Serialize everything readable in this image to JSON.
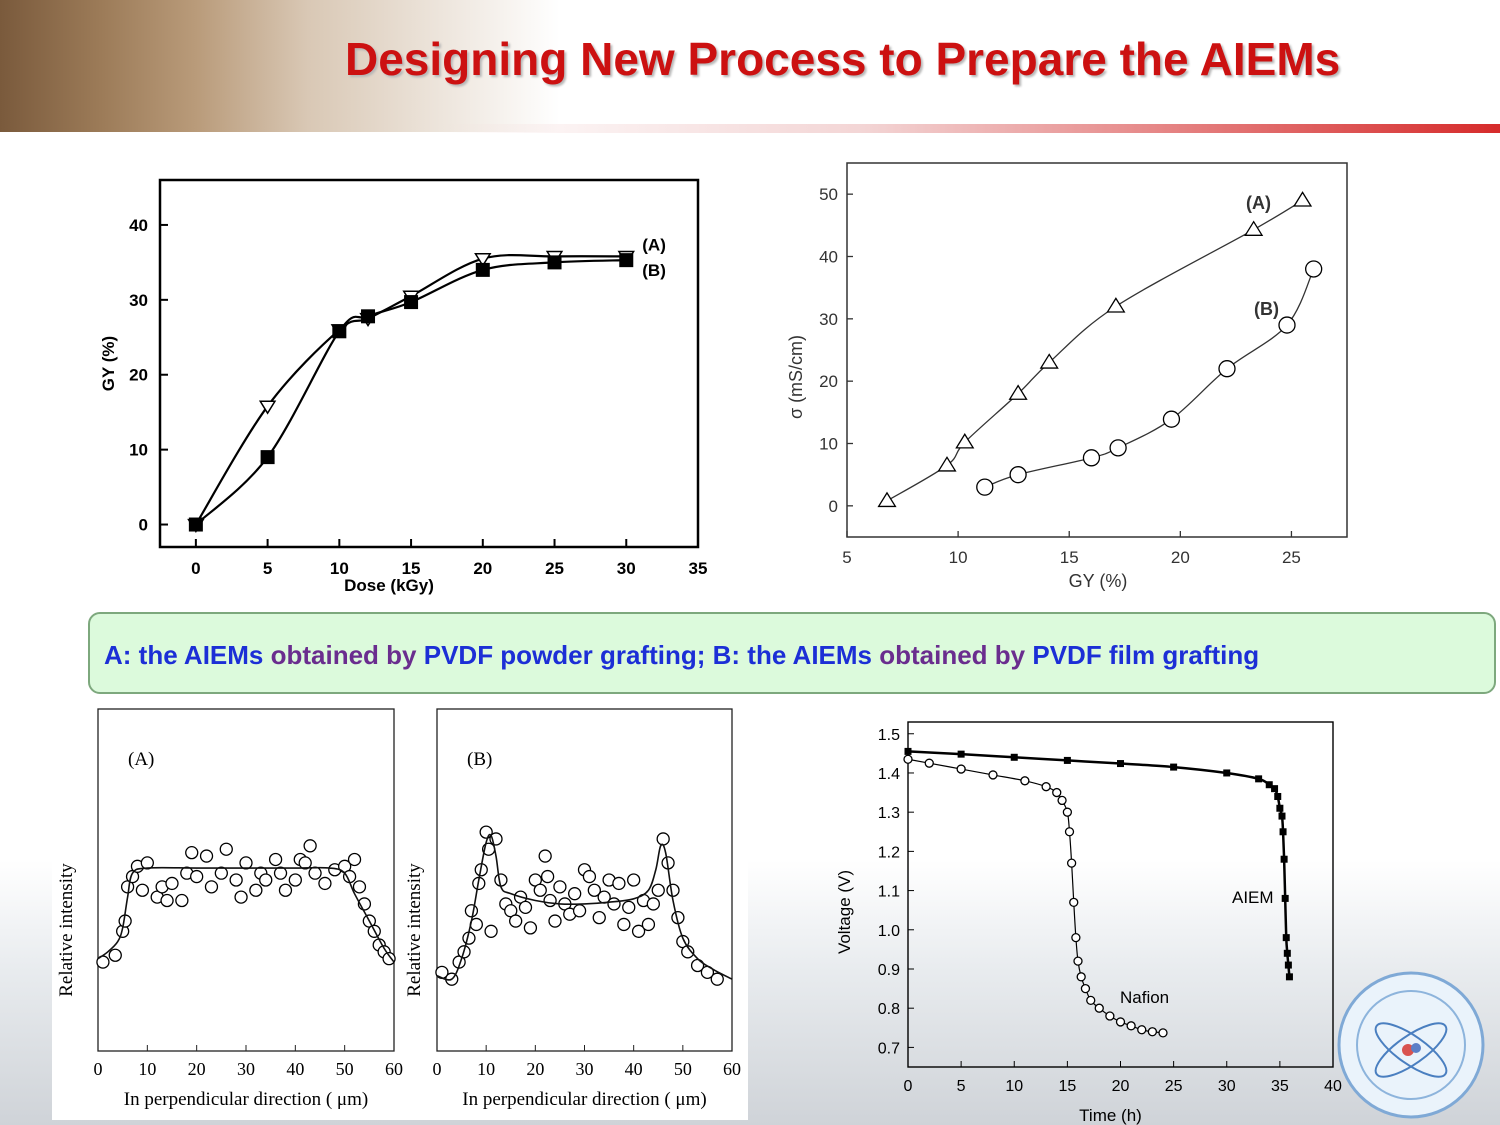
{
  "title": "Designing New Process to Prepare the AIEMs",
  "caption": {
    "a_prefix": "A: the AIEMs ",
    "a_mid": "obtained by ",
    "a_suffix": "PVDF powder grafting; ",
    "b_prefix": "B: the AIEMs ",
    "b_mid": "obtained by ",
    "b_suffix": "PVDF film grafting"
  },
  "colors": {
    "title": "#cc1111",
    "caption_blue": "#1c2fd6",
    "caption_purple": "#6a2d8e",
    "caption_bg": "#dcfadc"
  },
  "chart_data": [
    {
      "type": "line",
      "xlabel": "Dose (kGy)",
      "ylabel": "GY (%)",
      "xlim": [
        -2.5,
        35
      ],
      "ylim": [
        -3,
        46
      ],
      "xticks": [
        0,
        5,
        10,
        15,
        20,
        25,
        30,
        35
      ],
      "yticks": [
        0,
        10,
        20,
        30,
        40
      ],
      "series": [
        {
          "name": "(A)",
          "marker": "triangle-down-open",
          "x": [
            0,
            5,
            10,
            12,
            15,
            20,
            25,
            30
          ],
          "y": [
            0,
            15.8,
            26,
            27.5,
            30.5,
            35.5,
            35.8,
            35.8
          ]
        },
        {
          "name": "(B)",
          "marker": "square-filled",
          "x": [
            0,
            5,
            10,
            12,
            15,
            20,
            25,
            30
          ],
          "y": [
            0,
            9,
            25.8,
            27.8,
            29.7,
            34,
            35,
            35.3
          ]
        }
      ]
    },
    {
      "type": "line",
      "xlabel": "GY (%)",
      "ylabel": "σ (mS/cm)",
      "xlim": [
        5,
        27.5
      ],
      "ylim": [
        -5,
        55
      ],
      "xticks": [
        5,
        10,
        15,
        20,
        25
      ],
      "yticks": [
        0,
        10,
        20,
        30,
        40,
        50
      ],
      "series": [
        {
          "name": "(A)",
          "marker": "triangle-open",
          "x": [
            6.8,
            9.5,
            10.3,
            12.7,
            14.1,
            17.1,
            23.3,
            25.5
          ],
          "y": [
            0.8,
            6.5,
            10.2,
            18,
            23,
            32,
            44.3,
            49
          ]
        },
        {
          "name": "(B)",
          "marker": "circle-open",
          "x": [
            11.2,
            12.7,
            16.0,
            17.2,
            19.6,
            22.1,
            24.8,
            26.0
          ],
          "y": [
            3,
            5,
            7.7,
            9.3,
            13.9,
            22,
            29,
            38
          ]
        }
      ]
    },
    {
      "type": "scatter",
      "panel_label": "(A)",
      "xlabel": "In perpendicular direction ( μm)",
      "ylabel": "Relative intensity",
      "xlim": [
        0,
        60
      ],
      "ylim": [
        0,
        1
      ],
      "xticks": [
        0,
        10,
        20,
        30,
        40,
        50,
        60
      ],
      "fit_x": [
        0,
        2,
        4,
        5,
        6,
        7,
        10,
        20,
        30,
        40,
        47,
        50,
        52,
        55,
        58,
        60
      ],
      "fit_y": [
        0.27,
        0.29,
        0.32,
        0.36,
        0.45,
        0.52,
        0.535,
        0.535,
        0.535,
        0.535,
        0.535,
        0.52,
        0.46,
        0.38,
        0.3,
        0.26
      ],
      "points_x": [
        1,
        3.5,
        5,
        5.5,
        6,
        7,
        8,
        9,
        10,
        12,
        13,
        14,
        15,
        17,
        18,
        19,
        20,
        22,
        23,
        25,
        26,
        28,
        29,
        30,
        32,
        33,
        34,
        36,
        37,
        38,
        40,
        41,
        42,
        43,
        44,
        46,
        48,
        50,
        51,
        52,
        53,
        54,
        55,
        56,
        57,
        58,
        59
      ],
      "points_y": [
        0.26,
        0.28,
        0.35,
        0.38,
        0.48,
        0.51,
        0.54,
        0.47,
        0.55,
        0.45,
        0.48,
        0.44,
        0.49,
        0.44,
        0.52,
        0.58,
        0.51,
        0.57,
        0.48,
        0.52,
        0.59,
        0.5,
        0.45,
        0.55,
        0.47,
        0.52,
        0.5,
        0.56,
        0.52,
        0.47,
        0.5,
        0.56,
        0.55,
        0.6,
        0.52,
        0.49,
        0.53,
        0.54,
        0.51,
        0.56,
        0.48,
        0.43,
        0.38,
        0.35,
        0.31,
        0.29,
        0.27
      ]
    },
    {
      "type": "scatter",
      "panel_label": "(B)",
      "xlabel": "In perpendicular direction ( μm)",
      "ylabel": "Relative intensity",
      "xlim": [
        0,
        60
      ],
      "ylim": [
        0,
        1
      ],
      "xticks": [
        0,
        10,
        20,
        30,
        40,
        50,
        60
      ],
      "fit_x": [
        0,
        3,
        5,
        7,
        8.5,
        10,
        11,
        12,
        13,
        15,
        20,
        25,
        30,
        35,
        40,
        43,
        44.5,
        45.5,
        46.5,
        48,
        50,
        53,
        56,
        60
      ],
      "fit_y": [
        0.22,
        0.21,
        0.27,
        0.38,
        0.5,
        0.61,
        0.63,
        0.57,
        0.48,
        0.46,
        0.44,
        0.43,
        0.43,
        0.435,
        0.445,
        0.47,
        0.53,
        0.6,
        0.58,
        0.44,
        0.33,
        0.27,
        0.24,
        0.21
      ],
      "points_x": [
        1,
        3,
        4.5,
        5.5,
        6.5,
        7,
        8,
        8.5,
        9,
        10,
        10.5,
        11,
        12,
        13,
        14,
        15,
        16,
        17,
        18,
        19,
        20,
        21,
        22,
        22.5,
        23,
        24,
        25,
        26,
        27,
        28,
        29,
        30,
        31,
        32,
        33,
        34,
        35,
        36,
        37,
        38,
        39,
        40,
        41,
        42,
        43,
        44,
        45,
        46,
        47,
        48,
        49,
        50,
        51,
        53,
        55,
        57
      ],
      "points_y": [
        0.23,
        0.21,
        0.26,
        0.29,
        0.33,
        0.41,
        0.37,
        0.49,
        0.53,
        0.64,
        0.59,
        0.35,
        0.62,
        0.5,
        0.43,
        0.41,
        0.38,
        0.45,
        0.42,
        0.36,
        0.5,
        0.47,
        0.57,
        0.51,
        0.44,
        0.38,
        0.48,
        0.43,
        0.4,
        0.46,
        0.41,
        0.53,
        0.51,
        0.47,
        0.39,
        0.45,
        0.5,
        0.43,
        0.49,
        0.37,
        0.42,
        0.5,
        0.35,
        0.44,
        0.37,
        0.43,
        0.47,
        0.62,
        0.55,
        0.47,
        0.39,
        0.32,
        0.29,
        0.25,
        0.23,
        0.21
      ]
    },
    {
      "type": "line",
      "xlabel": "Time (h)",
      "ylabel": "Voltage (V)",
      "xlim": [
        0,
        40
      ],
      "ylim": [
        0.65,
        1.53
      ],
      "xticks": [
        0,
        5,
        10,
        15,
        20,
        25,
        30,
        35,
        40
      ],
      "yticks": [
        0.7,
        0.8,
        0.9,
        1.0,
        1.1,
        1.2,
        1.3,
        1.4,
        1.5
      ],
      "series": [
        {
          "name": "AIEM",
          "marker": "square-filled",
          "x": [
            0,
            5,
            10,
            15,
            20,
            25,
            30,
            33,
            34,
            34.5,
            34.8,
            35.0,
            35.2,
            35.3,
            35.4,
            35.5,
            35.6,
            35.7,
            35.8,
            35.9
          ],
          "y": [
            1.455,
            1.448,
            1.44,
            1.432,
            1.424,
            1.415,
            1.4,
            1.385,
            1.37,
            1.36,
            1.34,
            1.31,
            1.29,
            1.25,
            1.18,
            1.08,
            0.98,
            0.94,
            0.91,
            0.88
          ]
        },
        {
          "name": "Nafion",
          "marker": "circle-open",
          "x": [
            0,
            2,
            5,
            8,
            11,
            13,
            14,
            14.5,
            15,
            15.2,
            15.4,
            15.6,
            15.8,
            16,
            16.3,
            16.7,
            17.2,
            18,
            19,
            20,
            21,
            22,
            23,
            24
          ],
          "y": [
            1.435,
            1.425,
            1.41,
            1.395,
            1.38,
            1.365,
            1.35,
            1.33,
            1.3,
            1.25,
            1.17,
            1.07,
            0.98,
            0.92,
            0.88,
            0.85,
            0.82,
            0.8,
            0.78,
            0.765,
            0.755,
            0.745,
            0.74,
            0.737
          ]
        }
      ]
    }
  ]
}
